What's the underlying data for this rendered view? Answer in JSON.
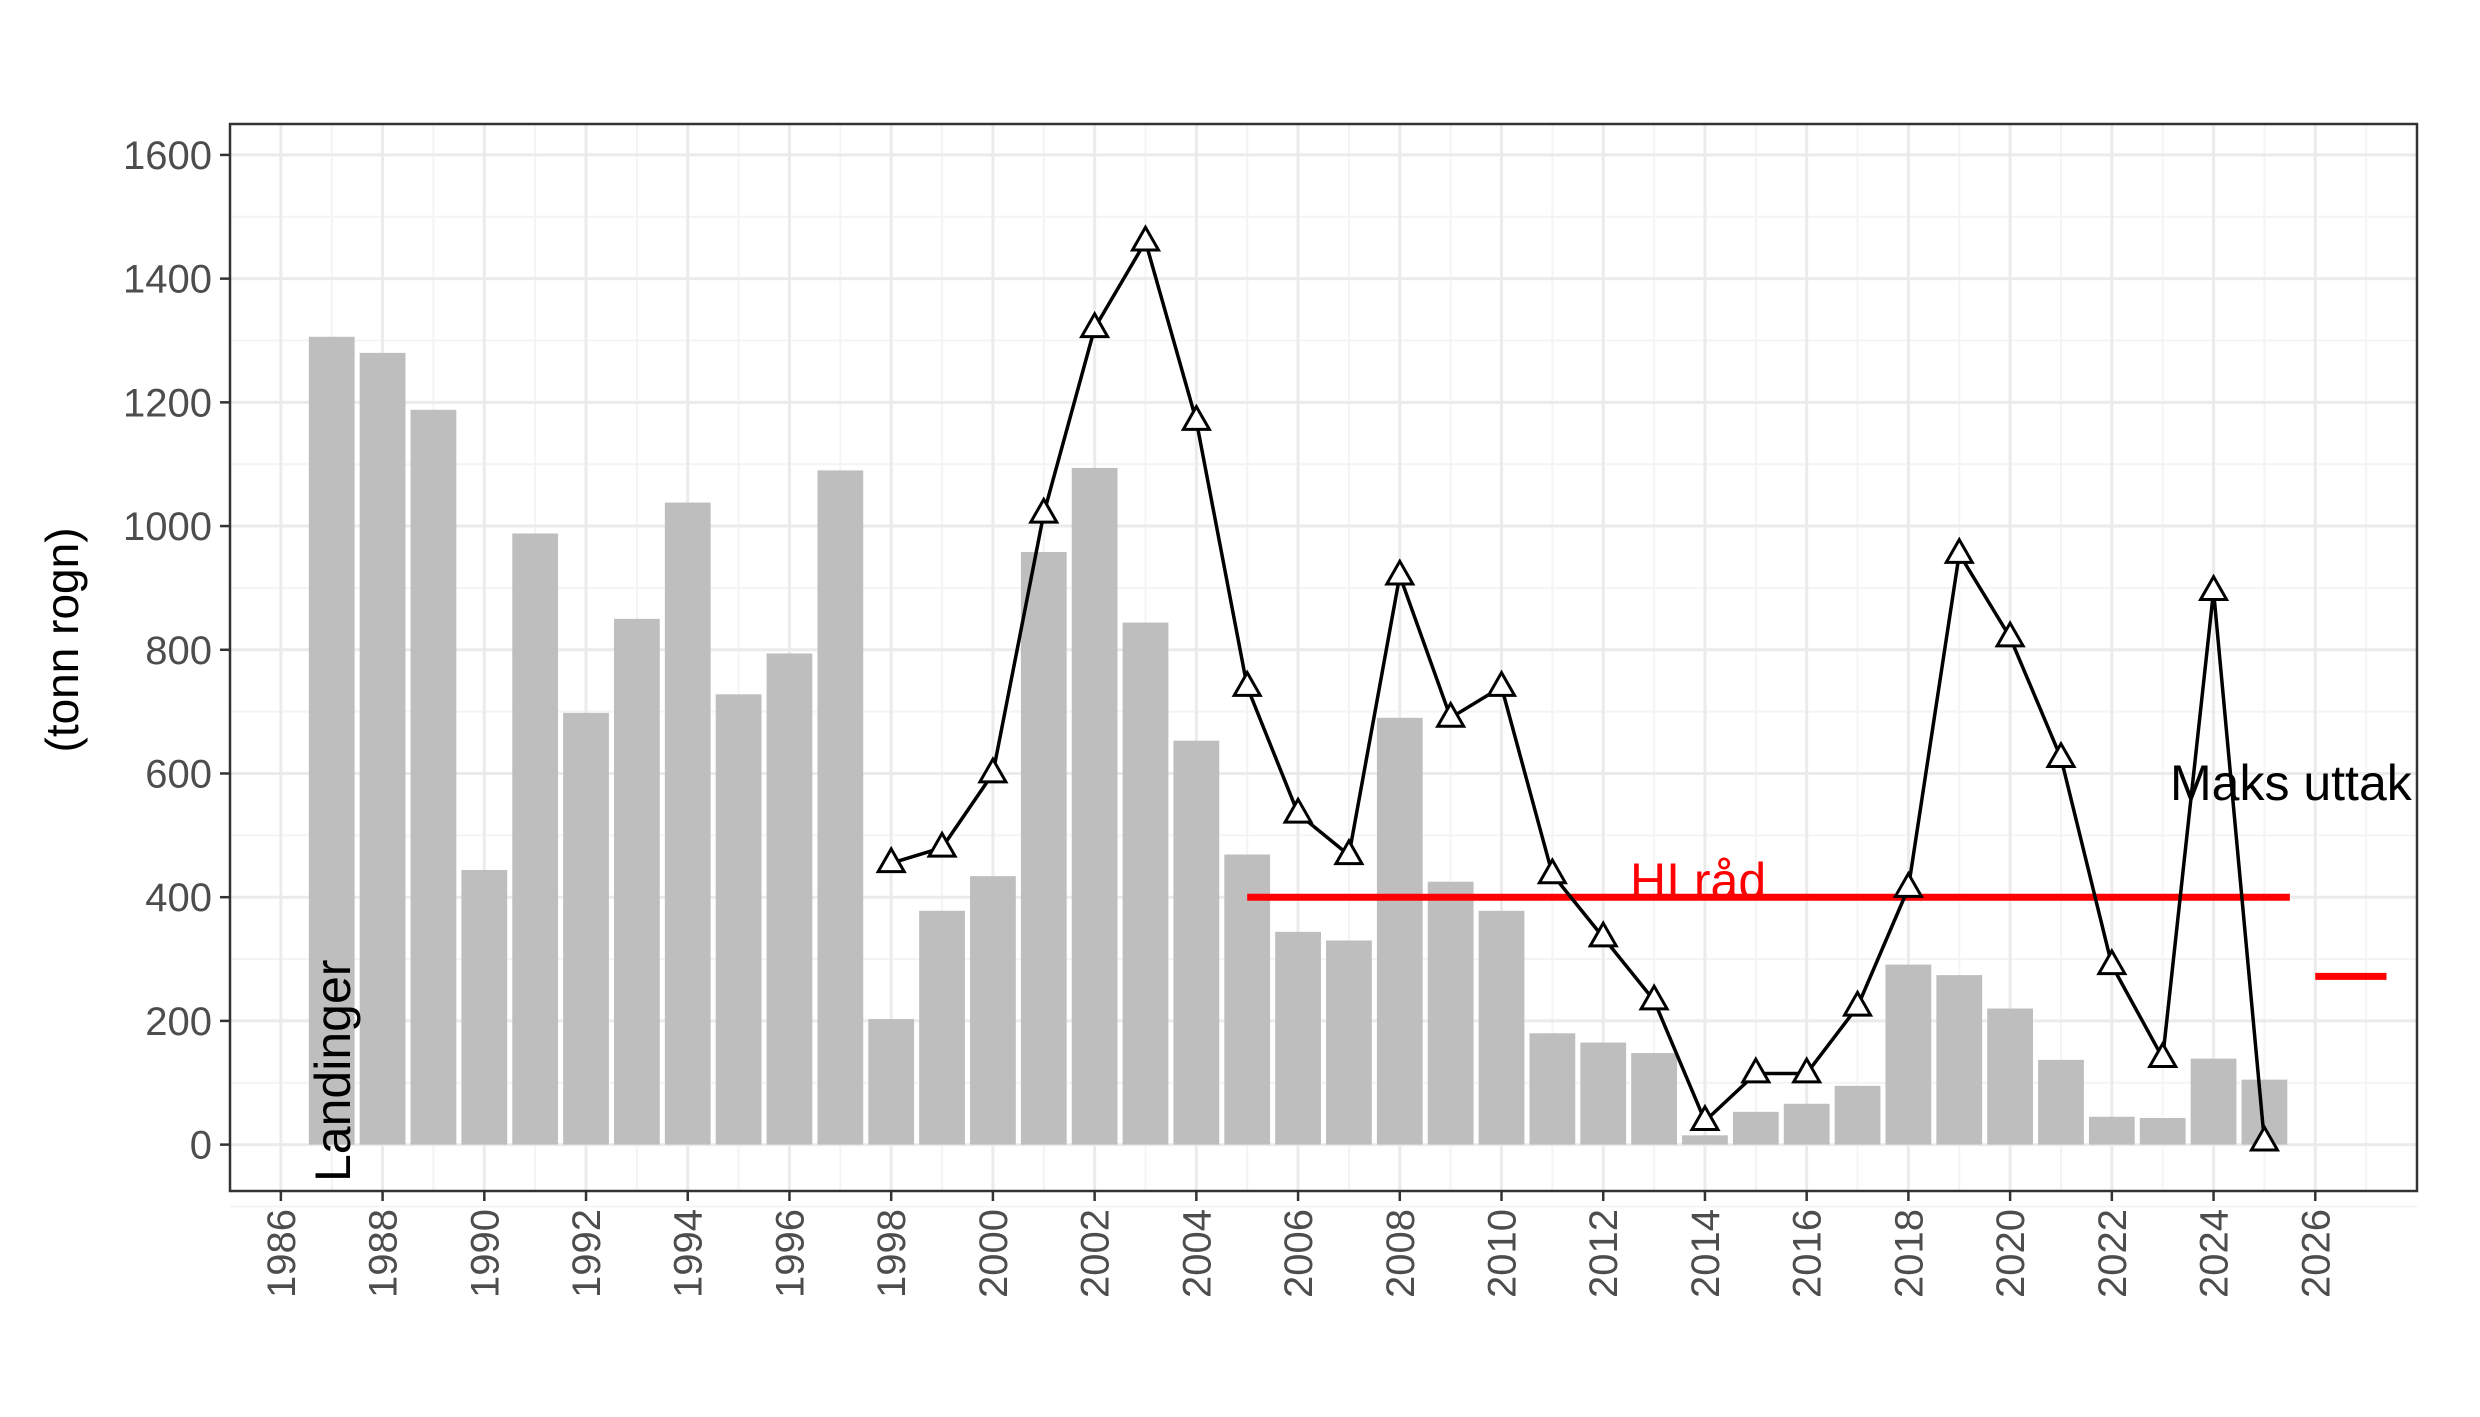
{
  "chart_data": {
    "type": "bar",
    "ylabel": "(tonn rogn)",
    "xlim": [
      1985,
      2028
    ],
    "ylim": [
      -75,
      1650
    ],
    "x_ticks": [
      1986,
      1988,
      1990,
      1992,
      1994,
      1996,
      1998,
      2000,
      2002,
      2004,
      2006,
      2008,
      2010,
      2012,
      2014,
      2016,
      2018,
      2020,
      2022,
      2024,
      2026
    ],
    "y_ticks": [
      0,
      200,
      400,
      600,
      800,
      1000,
      1200,
      1400,
      1600
    ],
    "grid": true,
    "colors": {
      "bars": "#bebebe",
      "line": "#000000",
      "advice": "#ff0000",
      "grid_major": "#ebebeb",
      "grid_minor": "#f4f4f4",
      "panel_border": "#333333"
    },
    "series": [
      {
        "name": "Landinger",
        "type": "bar",
        "x": [
          1987,
          1988,
          1989,
          1990,
          1991,
          1992,
          1993,
          1994,
          1995,
          1996,
          1997,
          1998,
          1999,
          2000,
          2001,
          2002,
          2003,
          2004,
          2005,
          2006,
          2007,
          2008,
          2009,
          2010,
          2011,
          2012,
          2013,
          2014,
          2015,
          2016,
          2017,
          2018,
          2019,
          2020,
          2021,
          2022,
          2023,
          2024,
          2025
        ],
        "values": [
          1306,
          1280,
          1188,
          444,
          988,
          698,
          850,
          1038,
          728,
          794,
          1090,
          203,
          378,
          434,
          958,
          1094,
          844,
          653,
          469,
          344,
          330,
          690,
          425,
          378,
          180,
          165,
          148,
          15,
          53,
          66,
          95,
          291,
          274,
          220,
          137,
          45,
          43,
          139,
          105
        ]
      },
      {
        "type": "line",
        "marker": "open-triangle",
        "x": [
          1998,
          1999,
          2000,
          2001,
          2002,
          2003,
          2004,
          2005,
          2006,
          2007,
          2008,
          2009,
          2010,
          2011,
          2012,
          2013,
          2014,
          2015,
          2016,
          2017,
          2018,
          2019,
          2020,
          2021,
          2022,
          2023,
          2024,
          2025
        ],
        "values": [
          455,
          480,
          600,
          1020,
          1320,
          1460,
          1170,
          740,
          535,
          468,
          920,
          690,
          740,
          437,
          335,
          233,
          38,
          115,
          115,
          223,
          415,
          955,
          820,
          625,
          290,
          140,
          895,
          5
        ]
      }
    ],
    "reference_lines": [
      {
        "name": "HI råd",
        "x_start": 2005,
        "x_end": 2025.5,
        "value": 400
      },
      {
        "name": "Maks uttak",
        "x_start": 2026,
        "x_end": 2027.4,
        "value": 272
      }
    ],
    "annotations": {
      "landinger": "Landinger",
      "hi_rad": "HI råd",
      "maks_uttak": "Maks uttak"
    }
  }
}
